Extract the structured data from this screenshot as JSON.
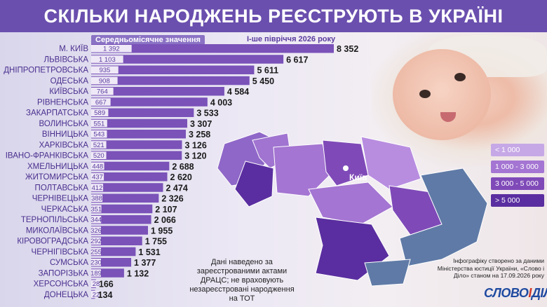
{
  "title": "СКІЛЬКИ НАРОДЖЕНЬ РЕЄСТРУЮТЬ В УКРАЇНІ",
  "subheaders": {
    "average": "Середньомісячне значення",
    "period": "I-ше півріччя 2026 року"
  },
  "chart_data": {
    "type": "bar",
    "orientation": "horizontal",
    "title": "СКІЛЬКИ НАРОДЖЕНЬ РЕЄСТРУЮТЬ В УКРАЇНІ",
    "categories": [
      "М. КИЇВ",
      "ЛЬВІВСЬКА",
      "ДНІПРОПЕТРОВСЬКА",
      "ОДЕСЬКА",
      "КИЇВСЬКА",
      "РІВНЕНСЬКА",
      "ЗАКАРПАТСЬКА",
      "ВОЛИНСЬКА",
      "ВІННИЦЬКА",
      "ХАРКІВСЬКА",
      "ІВАНО-ФРАНКІВСЬКА",
      "ХМЕЛЬНИЦЬКА",
      "ЖИТОМИРСЬКА",
      "ПОЛТАВСЬКА",
      "ЧЕРНІВЕЦЬКА",
      "ЧЕРКАСЬКА",
      "ТЕРНОПІЛЬСЬКА",
      "МИКОЛАЇВСЬКА",
      "КІРОВОГРАДСЬКА",
      "ЧЕРНІГІВСЬКА",
      "СУМСЬКА",
      "ЗАПОРІЗЬКА",
      "ХЕРСОНСЬКА",
      "ДОНЕЦЬКА"
    ],
    "series": [
      {
        "name": "I-ше півріччя 2026 року",
        "values": [
          8352,
          6617,
          5611,
          5450,
          4584,
          4003,
          3533,
          3307,
          3258,
          3126,
          3120,
          2688,
          2620,
          2474,
          2326,
          2107,
          2066,
          1955,
          1755,
          1531,
          1377,
          1132,
          166,
          134
        ]
      },
      {
        "name": "Середньомісячне значення",
        "values": [
          1392,
          1103,
          935,
          908,
          764,
          667,
          589,
          551,
          543,
          521,
          520,
          448,
          437,
          412,
          388,
          351,
          344,
          326,
          292,
          255,
          230,
          189,
          28,
          22
        ]
      }
    ],
    "value_labels": [
      "8 352",
      "6 617",
      "5 611",
      "5 450",
      "4 584",
      "4 003",
      "3 533",
      "3 307",
      "3 258",
      "3 126",
      "3 120",
      "2 688",
      "2 620",
      "2 474",
      "2 326",
      "2 107",
      "2 066",
      "1 955",
      "1 755",
      "1 531",
      "1 377",
      "1 132",
      "166",
      "134"
    ],
    "avg_labels": [
      "1 392",
      "1 103",
      "935",
      "908",
      "764",
      "667",
      "589",
      "551",
      "543",
      "521",
      "520",
      "448",
      "437",
      "412",
      "388",
      "351",
      "344",
      "326",
      "292",
      "255",
      "230",
      "189",
      "28",
      "22"
    ],
    "xlim": [
      0,
      8352
    ],
    "grid": false
  },
  "map": {
    "kyiv_label": "Київ"
  },
  "legend": [
    {
      "label": "< 1 000",
      "color": "#c6a8e6"
    },
    {
      "label": "1 000 - 3 000",
      "color": "#a475d2"
    },
    {
      "label": "3 000 - 5 000",
      "color": "#7f4ab8"
    },
    {
      "label": "> 5 000",
      "color": "#5a2ea0"
    }
  ],
  "colors": {
    "bar": "#7a52b8",
    "avg_bar": "#efe9f7",
    "header": "#6a4fae",
    "occupied": "#5f7aa6"
  },
  "note": "Дані наведено за зареєстрованими актами ДРАЦС; не враховують незареєстровані народження на ТОТ",
  "source": "Інфографіку створено за даними Міністерства юстиції України, «Слово і Діло» станом на 17.09.2026 року",
  "logo": {
    "word1": "СЛОВО",
    "amp": "І",
    "word2": "ДІЛО"
  }
}
